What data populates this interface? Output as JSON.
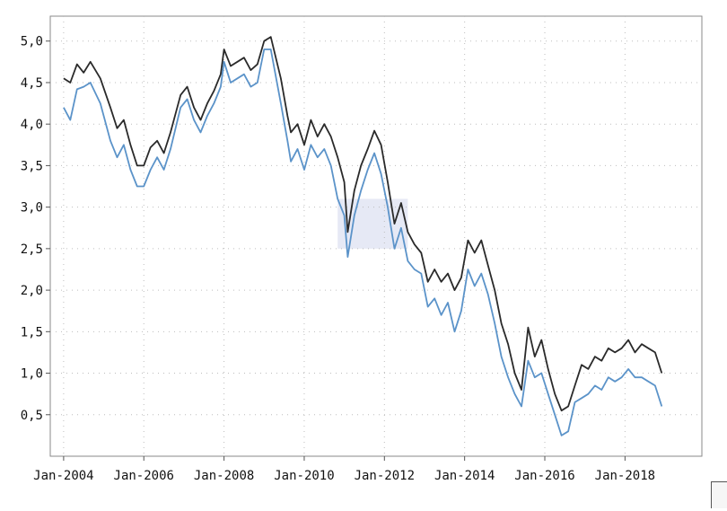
{
  "chart_data": {
    "type": "line",
    "title": "",
    "xlabel": "",
    "ylabel": "",
    "x_ticks": [
      "Jan-2004",
      "Jan-2006",
      "Jan-2008",
      "Jan-2010",
      "Jan-2012",
      "Jan-2014",
      "Jan-2016",
      "Jan-2018"
    ],
    "y_ticks": [
      "0,5",
      "1,0",
      "1,5",
      "2,0",
      "2,5",
      "3,0",
      "3,5",
      "4,0",
      "4,5",
      "5,0"
    ],
    "xlim": [
      "2003-09",
      "2019-12"
    ],
    "ylim": [
      0.0,
      5.3
    ],
    "grid": true,
    "highlight_region": {
      "x": [
        "2010-11",
        "2012-08"
      ],
      "y": [
        2.5,
        3.1
      ]
    },
    "series": [
      {
        "color": "#2a2a2a",
        "points": [
          [
            "2004-01",
            4.55
          ],
          [
            "2004-03",
            4.5
          ],
          [
            "2004-05",
            4.72
          ],
          [
            "2004-07",
            4.62
          ],
          [
            "2004-09",
            4.75
          ],
          [
            "2004-12",
            4.55
          ],
          [
            "2005-03",
            4.2
          ],
          [
            "2005-05",
            3.95
          ],
          [
            "2005-07",
            4.05
          ],
          [
            "2005-09",
            3.75
          ],
          [
            "2005-11",
            3.5
          ],
          [
            "2006-01",
            3.5
          ],
          [
            "2006-03",
            3.72
          ],
          [
            "2006-05",
            3.8
          ],
          [
            "2006-07",
            3.65
          ],
          [
            "2006-09",
            3.9
          ],
          [
            "2006-12",
            4.35
          ],
          [
            "2007-02",
            4.45
          ],
          [
            "2007-04",
            4.2
          ],
          [
            "2007-06",
            4.05
          ],
          [
            "2007-08",
            4.25
          ],
          [
            "2007-10",
            4.4
          ],
          [
            "2007-12",
            4.6
          ],
          [
            "2008-01",
            4.9
          ],
          [
            "2008-03",
            4.7
          ],
          [
            "2008-05",
            4.75
          ],
          [
            "2008-07",
            4.8
          ],
          [
            "2008-09",
            4.65
          ],
          [
            "2008-11",
            4.72
          ],
          [
            "2009-01",
            5.0
          ],
          [
            "2009-03",
            5.05
          ],
          [
            "2009-06",
            4.55
          ],
          [
            "2009-08",
            4.1
          ],
          [
            "2009-09",
            3.9
          ],
          [
            "2009-11",
            4.0
          ],
          [
            "2010-01",
            3.75
          ],
          [
            "2010-03",
            4.05
          ],
          [
            "2010-05",
            3.85
          ],
          [
            "2010-07",
            4.0
          ],
          [
            "2010-09",
            3.85
          ],
          [
            "2010-11",
            3.6
          ],
          [
            "2011-01",
            3.3
          ],
          [
            "2011-02",
            2.7
          ],
          [
            "2011-04",
            3.2
          ],
          [
            "2011-06",
            3.5
          ],
          [
            "2011-08",
            3.7
          ],
          [
            "2011-10",
            3.92
          ],
          [
            "2011-12",
            3.75
          ],
          [
            "2012-02",
            3.3
          ],
          [
            "2012-04",
            2.8
          ],
          [
            "2012-06",
            3.05
          ],
          [
            "2012-08",
            2.7
          ],
          [
            "2012-10",
            2.55
          ],
          [
            "2012-12",
            2.45
          ],
          [
            "2013-02",
            2.1
          ],
          [
            "2013-04",
            2.25
          ],
          [
            "2013-06",
            2.1
          ],
          [
            "2013-08",
            2.2
          ],
          [
            "2013-10",
            2.0
          ],
          [
            "2013-12",
            2.15
          ],
          [
            "2014-02",
            2.6
          ],
          [
            "2014-04",
            2.45
          ],
          [
            "2014-06",
            2.6
          ],
          [
            "2014-08",
            2.3
          ],
          [
            "2014-10",
            2.0
          ],
          [
            "2014-12",
            1.6
          ],
          [
            "2015-02",
            1.35
          ],
          [
            "2015-04",
            1.0
          ],
          [
            "2015-06",
            0.8
          ],
          [
            "2015-08",
            1.55
          ],
          [
            "2015-10",
            1.2
          ],
          [
            "2015-12",
            1.4
          ],
          [
            "2016-02",
            1.05
          ],
          [
            "2016-04",
            0.75
          ],
          [
            "2016-06",
            0.55
          ],
          [
            "2016-08",
            0.6
          ],
          [
            "2016-10",
            0.85
          ],
          [
            "2016-12",
            1.1
          ],
          [
            "2017-02",
            1.05
          ],
          [
            "2017-04",
            1.2
          ],
          [
            "2017-06",
            1.15
          ],
          [
            "2017-08",
            1.3
          ],
          [
            "2017-10",
            1.25
          ],
          [
            "2017-12",
            1.3
          ],
          [
            "2018-02",
            1.4
          ],
          [
            "2018-04",
            1.25
          ],
          [
            "2018-06",
            1.35
          ],
          [
            "2018-08",
            1.3
          ],
          [
            "2018-10",
            1.25
          ],
          [
            "2018-12",
            1.0
          ]
        ]
      },
      {
        "color": "#5b93c9",
        "points": [
          [
            "2004-01",
            4.2
          ],
          [
            "2004-03",
            4.05
          ],
          [
            "2004-05",
            4.42
          ],
          [
            "2004-07",
            4.45
          ],
          [
            "2004-09",
            4.5
          ],
          [
            "2004-12",
            4.25
          ],
          [
            "2005-03",
            3.8
          ],
          [
            "2005-05",
            3.6
          ],
          [
            "2005-07",
            3.75
          ],
          [
            "2005-09",
            3.45
          ],
          [
            "2005-11",
            3.25
          ],
          [
            "2006-01",
            3.25
          ],
          [
            "2006-03",
            3.45
          ],
          [
            "2006-05",
            3.6
          ],
          [
            "2006-07",
            3.45
          ],
          [
            "2006-09",
            3.7
          ],
          [
            "2006-12",
            4.2
          ],
          [
            "2007-02",
            4.3
          ],
          [
            "2007-04",
            4.05
          ],
          [
            "2007-06",
            3.9
          ],
          [
            "2007-08",
            4.1
          ],
          [
            "2007-10",
            4.25
          ],
          [
            "2007-12",
            4.45
          ],
          [
            "2008-01",
            4.75
          ],
          [
            "2008-03",
            4.5
          ],
          [
            "2008-05",
            4.55
          ],
          [
            "2008-07",
            4.6
          ],
          [
            "2008-09",
            4.45
          ],
          [
            "2008-11",
            4.5
          ],
          [
            "2009-01",
            4.9
          ],
          [
            "2009-03",
            4.9
          ],
          [
            "2009-06",
            4.25
          ],
          [
            "2009-08",
            3.8
          ],
          [
            "2009-09",
            3.55
          ],
          [
            "2009-11",
            3.7
          ],
          [
            "2010-01",
            3.45
          ],
          [
            "2010-03",
            3.75
          ],
          [
            "2010-05",
            3.6
          ],
          [
            "2010-07",
            3.7
          ],
          [
            "2010-09",
            3.5
          ],
          [
            "2010-11",
            3.1
          ],
          [
            "2011-01",
            2.9
          ],
          [
            "2011-02",
            2.4
          ],
          [
            "2011-04",
            2.9
          ],
          [
            "2011-06",
            3.2
          ],
          [
            "2011-08",
            3.45
          ],
          [
            "2011-10",
            3.65
          ],
          [
            "2011-12",
            3.4
          ],
          [
            "2012-02",
            3.0
          ],
          [
            "2012-04",
            2.5
          ],
          [
            "2012-06",
            2.75
          ],
          [
            "2012-08",
            2.35
          ],
          [
            "2012-10",
            2.25
          ],
          [
            "2012-12",
            2.2
          ],
          [
            "2013-02",
            1.8
          ],
          [
            "2013-04",
            1.9
          ],
          [
            "2013-06",
            1.7
          ],
          [
            "2013-08",
            1.85
          ],
          [
            "2013-10",
            1.5
          ],
          [
            "2013-12",
            1.75
          ],
          [
            "2014-02",
            2.25
          ],
          [
            "2014-04",
            2.05
          ],
          [
            "2014-06",
            2.2
          ],
          [
            "2014-08",
            1.95
          ],
          [
            "2014-10",
            1.6
          ],
          [
            "2014-12",
            1.2
          ],
          [
            "2015-02",
            0.95
          ],
          [
            "2015-04",
            0.75
          ],
          [
            "2015-06",
            0.6
          ],
          [
            "2015-08",
            1.15
          ],
          [
            "2015-10",
            0.95
          ],
          [
            "2015-12",
            1.0
          ],
          [
            "2016-02",
            0.75
          ],
          [
            "2016-04",
            0.5
          ],
          [
            "2016-06",
            0.25
          ],
          [
            "2016-08",
            0.3
          ],
          [
            "2016-10",
            0.65
          ],
          [
            "2016-12",
            0.7
          ],
          [
            "2017-02",
            0.75
          ],
          [
            "2017-04",
            0.85
          ],
          [
            "2017-06",
            0.8
          ],
          [
            "2017-08",
            0.95
          ],
          [
            "2017-10",
            0.9
          ],
          [
            "2017-12",
            0.95
          ],
          [
            "2018-02",
            1.05
          ],
          [
            "2018-04",
            0.95
          ],
          [
            "2018-06",
            0.95
          ],
          [
            "2018-08",
            0.9
          ],
          [
            "2018-10",
            0.85
          ],
          [
            "2018-12",
            0.6
          ]
        ]
      }
    ]
  }
}
